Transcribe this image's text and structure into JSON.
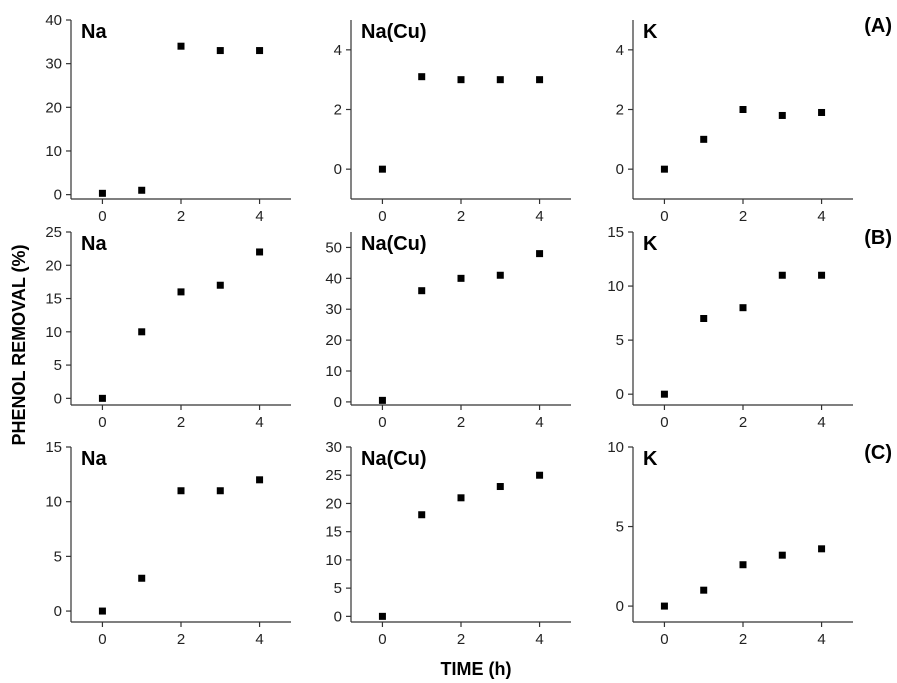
{
  "chart_data": {
    "type": "scatter",
    "xlabel": "TIME (h)",
    "ylabel": "PHENOL REMOVAL (%)",
    "x_ticks": [
      0,
      2,
      4
    ],
    "xlim": [
      -0.8,
      4.8
    ],
    "rows": [
      {
        "label": "(A)",
        "panels": [
          {
            "title": "Na",
            "x": [
              0,
              1,
              2,
              3,
              4
            ],
            "y": [
              0.3,
              1,
              34,
              33,
              33
            ],
            "ylim": [
              -1,
              40
            ],
            "y_ticks": [
              0,
              10,
              20,
              30,
              40
            ]
          },
          {
            "title": "Na(Cu)",
            "x": [
              0,
              1,
              2,
              3,
              4
            ],
            "y": [
              0,
              3.1,
              3.0,
              3.0,
              3.0
            ],
            "ylim": [
              -1.0,
              5.0
            ],
            "y_ticks": [
              0,
              2,
              4
            ]
          },
          {
            "title": "K",
            "x": [
              0,
              1,
              2,
              3,
              4
            ],
            "y": [
              0,
              1.0,
              2.0,
              1.8,
              1.9
            ],
            "ylim": [
              -1.0,
              5.0
            ],
            "y_ticks": [
              0,
              2,
              4
            ]
          }
        ]
      },
      {
        "label": "(B)",
        "panels": [
          {
            "title": "Na",
            "x": [
              0,
              1,
              2,
              3,
              4
            ],
            "y": [
              0,
              10,
              16,
              17,
              22
            ],
            "ylim": [
              -1,
              25
            ],
            "y_ticks": [
              0,
              5,
              10,
              15,
              20,
              25
            ]
          },
          {
            "title": "Na(Cu)",
            "x": [
              0,
              1,
              2,
              3,
              4
            ],
            "y": [
              0.5,
              36,
              40,
              41,
              48
            ],
            "ylim": [
              -1,
              55
            ],
            "y_ticks": [
              0,
              10,
              20,
              30,
              40,
              50
            ]
          },
          {
            "title": "K",
            "x": [
              0,
              1,
              2,
              3,
              4
            ],
            "y": [
              0,
              7,
              8,
              11,
              11
            ],
            "ylim": [
              -1,
              15
            ],
            "y_ticks": [
              0,
              5,
              10,
              15
            ]
          }
        ]
      },
      {
        "label": "(C)",
        "panels": [
          {
            "title": "Na",
            "x": [
              0,
              1,
              2,
              3,
              4
            ],
            "y": [
              0,
              3,
              11,
              11,
              12
            ],
            "ylim": [
              -1,
              15
            ],
            "y_ticks": [
              0,
              5,
              10,
              15
            ]
          },
          {
            "title": "Na(Cu)",
            "x": [
              0,
              1,
              2,
              3,
              4
            ],
            "y": [
              0,
              18,
              21,
              23,
              25
            ],
            "ylim": [
              -1,
              30
            ],
            "y_ticks": [
              0,
              5,
              10,
              15,
              20,
              25,
              30
            ]
          },
          {
            "title": "K",
            "x": [
              0,
              1,
              2,
              3,
              4
            ],
            "y": [
              0,
              1.0,
              2.6,
              3.2,
              3.6
            ],
            "ylim": [
              -1,
              10
            ],
            "y_ticks": [
              0,
              5,
              10
            ]
          }
        ]
      }
    ]
  }
}
